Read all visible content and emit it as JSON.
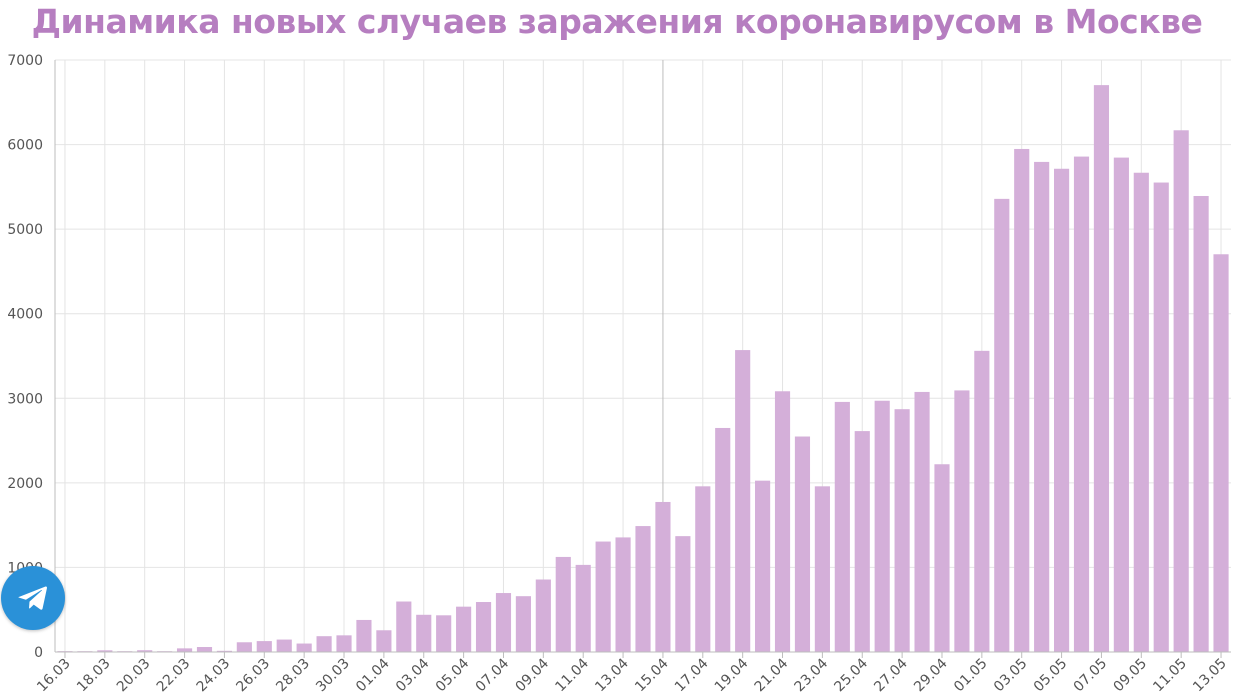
{
  "chart_data": {
    "type": "bar",
    "title": "Динамика новых случаев заражения коронавирусом в Москве",
    "xlabel": "",
    "ylabel": "",
    "ylim": [
      0,
      7000
    ],
    "yticks": [
      0,
      1000,
      2000,
      3000,
      4000,
      5000,
      6000,
      7000
    ],
    "grid": true,
    "bar_color": "#d4afd9",
    "title_color": "#b67ec0",
    "categories": [
      "16.03",
      "17.03",
      "18.03",
      "19.03",
      "20.03",
      "21.03",
      "22.03",
      "23.03",
      "24.03",
      "25.03",
      "26.03",
      "27.03",
      "28.03",
      "29.03",
      "30.03",
      "31.03",
      "01.04",
      "02.04",
      "03.04",
      "04.04",
      "05.04",
      "06.04",
      "07.04",
      "08.04",
      "09.04",
      "10.04",
      "11.04",
      "12.04",
      "13.04",
      "14.04",
      "15.04",
      "16.04",
      "17.04",
      "18.04",
      "19.04",
      "20.04",
      "21.04",
      "22.04",
      "23.04",
      "24.04",
      "25.04",
      "26.04",
      "27.04",
      "28.04",
      "29.04",
      "30.04",
      "01.05",
      "02.05",
      "03.05",
      "04.05",
      "05.05",
      "06.05",
      "07.05",
      "08.05",
      "09.05",
      "10.05",
      "11.05",
      "12.05",
      "13.05"
    ],
    "tick_labels": [
      "16.03",
      "18.03",
      "20.03",
      "22.03",
      "24.03",
      "26.03",
      "28.03",
      "30.03",
      "01.04",
      "03.04",
      "05.04",
      "07.04",
      "09.04",
      "11.04",
      "13.04",
      "15.04",
      "17.04",
      "19.04",
      "21.04",
      "23.04",
      "25.04",
      "27.04",
      "29.04",
      "01.05",
      "03.05",
      "05.05",
      "07.05",
      "09.05",
      "11.05",
      "13.05"
    ],
    "values": [
      10,
      1,
      20,
      3,
      21,
      2,
      43,
      59,
      14,
      115,
      129,
      147,
      100,
      187,
      197,
      379,
      257,
      597,
      440,
      434,
      536,
      591,
      697,
      660,
      857,
      1124,
      1030,
      1306,
      1355,
      1489,
      1774,
      1370,
      1959,
      2649,
      3570,
      2026,
      3083,
      2548,
      1959,
      2957,
      2612,
      2971,
      2871,
      3075,
      2220,
      3093,
      3561,
      5358,
      5948,
      5795,
      5714,
      5858,
      6703,
      5846,
      5667,
      5551,
      6169,
      5392,
      4703
    ]
  },
  "telegram": {
    "icon": "telegram-icon",
    "color": "#2a91d8"
  }
}
